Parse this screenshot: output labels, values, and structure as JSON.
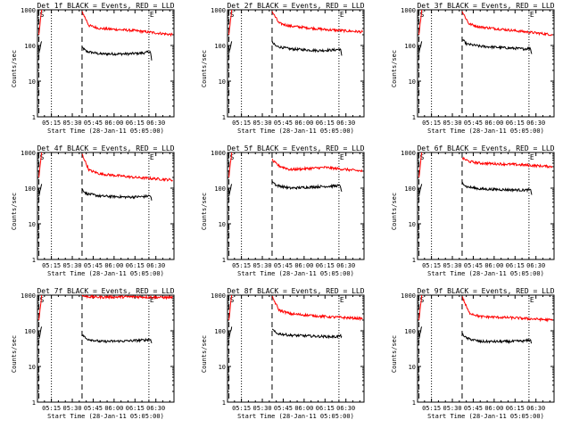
{
  "start_time_label": "Start Time (28-Jan-11 05:05:00)",
  "x_ticks": [
    "05:15",
    "05:30",
    "05:45",
    "06:00",
    "06:15",
    "06:30"
  ],
  "y_ticks": [
    "1",
    "10",
    "100",
    "1000"
  ],
  "colors": {
    "events": "#000000",
    "lld": "#ff0000",
    "frame": "#000000"
  },
  "chart_data": [
    {
      "type": "line",
      "title": "Det 1f BLACK = Events, RED = LLD",
      "xlabel": "Start Time (28-Jan-11 05:05:00)",
      "ylabel": "Counts/sec",
      "xlim": [
        "05:05",
        "06:43"
      ],
      "ylim": [
        1,
        1000
      ],
      "y_scale": "log",
      "x_tick_labels": [
        "05:15",
        "05:30",
        "05:45",
        "06:00",
        "06:15",
        "06:30"
      ],
      "markers": {
        "dotted": [
          "05:15",
          "06:25"
        ],
        "dashed": [
          "05:06",
          "05:37"
        ],
        "labels": {
          "start": "S",
          "end": "E"
        }
      },
      "series": [
        {
          "name": "Events",
          "color": "#000000",
          "segments": [
            {
              "x": [
                "05:06",
                "05:08"
              ],
              "y": [
                60,
                130
              ]
            },
            {
              "x": [
                "05:37",
                "05:40",
                "05:50",
                "06:10",
                "06:22",
                "06:26",
                "06:27"
              ],
              "y": [
                90,
                68,
                58,
                58,
                62,
                68,
                38
              ]
            }
          ]
        },
        {
          "name": "LLD",
          "color": "#ff0000",
          "segments": [
            {
              "x": [
                "05:06",
                "05:08"
              ],
              "y": [
                200,
                1000
              ]
            },
            {
              "x": [
                "05:37",
                "05:42",
                "05:50",
                "06:15",
                "06:42"
              ],
              "y": [
                900,
                360,
                300,
                260,
                200
              ]
            }
          ]
        }
      ]
    },
    {
      "type": "line",
      "title": "Det 2f BLACK = Events, RED = LLD",
      "xlabel": "Start Time (28-Jan-11 05:05:00)",
      "ylabel": "Counts/sec",
      "xlim": [
        "05:05",
        "06:43"
      ],
      "ylim": [
        1,
        1000
      ],
      "y_scale": "log",
      "x_tick_labels": [
        "05:15",
        "05:30",
        "05:45",
        "06:00",
        "06:15",
        "06:30"
      ],
      "markers": {
        "dotted": [
          "05:15",
          "06:25"
        ],
        "dashed": [
          "05:06",
          "05:37"
        ],
        "labels": {
          "start": "S",
          "end": "E"
        }
      },
      "series": [
        {
          "name": "Events",
          "color": "#000000",
          "segments": [
            {
              "x": [
                "05:06",
                "05:08"
              ],
              "y": [
                60,
                130
              ]
            },
            {
              "x": [
                "05:37",
                "05:40",
                "05:50",
                "06:10",
                "06:22",
                "06:26",
                "06:27"
              ],
              "y": [
                120,
                95,
                80,
                72,
                75,
                80,
                52
              ]
            }
          ]
        },
        {
          "name": "LLD",
          "color": "#ff0000",
          "segments": [
            {
              "x": [
                "05:06",
                "05:08"
              ],
              "y": [
                200,
                1000
              ]
            },
            {
              "x": [
                "05:37",
                "05:42",
                "05:50",
                "06:15",
                "06:42"
              ],
              "y": [
                900,
                420,
                350,
                280,
                240
              ]
            }
          ]
        }
      ]
    },
    {
      "type": "line",
      "title": "Det 3f BLACK = Events, RED = LLD",
      "xlabel": "Start Time (28-Jan-11 05:05:00)",
      "ylabel": "Counts/sec",
      "xlim": [
        "05:05",
        "06:43"
      ],
      "ylim": [
        1,
        1000
      ],
      "y_scale": "log",
      "x_tick_labels": [
        "05:15",
        "05:30",
        "05:45",
        "06:00",
        "06:15",
        "06:30"
      ],
      "markers": {
        "dotted": [
          "05:15",
          "06:25"
        ],
        "dashed": [
          "05:06",
          "05:37"
        ],
        "labels": {
          "start": "S",
          "end": "E"
        }
      },
      "series": [
        {
          "name": "Events",
          "color": "#000000",
          "segments": [
            {
              "x": [
                "05:06",
                "05:08"
              ],
              "y": [
                60,
                130
              ]
            },
            {
              "x": [
                "05:37",
                "05:40",
                "05:50",
                "06:10",
                "06:22",
                "06:26",
                "06:27"
              ],
              "y": [
                150,
                110,
                95,
                85,
                80,
                85,
                58
              ]
            }
          ]
        },
        {
          "name": "LLD",
          "color": "#ff0000",
          "segments": [
            {
              "x": [
                "05:06",
                "05:08"
              ],
              "y": [
                200,
                1000
              ]
            },
            {
              "x": [
                "05:37",
                "05:42",
                "05:50",
                "06:15",
                "06:42"
              ],
              "y": [
                900,
                400,
                330,
                260,
                200
              ]
            }
          ]
        }
      ]
    },
    {
      "type": "line",
      "title": "Det 4f BLACK = Events, RED = LLD",
      "xlabel": "Start Time (28-Jan-11 05:05:00)",
      "ylabel": "Counts/sec",
      "xlim": [
        "05:05",
        "06:43"
      ],
      "ylim": [
        1,
        1000
      ],
      "y_scale": "log",
      "x_tick_labels": [
        "05:15",
        "05:30",
        "05:45",
        "06:00",
        "06:15",
        "06:30"
      ],
      "markers": {
        "dotted": [
          "05:15",
          "06:25"
        ],
        "dashed": [
          "05:06",
          "05:37"
        ],
        "labels": {
          "start": "S",
          "end": "E"
        }
      },
      "series": [
        {
          "name": "Events",
          "color": "#000000",
          "segments": [
            {
              "x": [
                "05:06",
                "05:08"
              ],
              "y": [
                60,
                130
              ]
            },
            {
              "x": [
                "05:37",
                "05:40",
                "05:50",
                "06:10",
                "06:22",
                "06:26",
                "06:27"
              ],
              "y": [
                95,
                70,
                60,
                56,
                58,
                62,
                45
              ]
            }
          ]
        },
        {
          "name": "LLD",
          "color": "#ff0000",
          "segments": [
            {
              "x": [
                "05:06",
                "05:08"
              ],
              "y": [
                200,
                1000
              ]
            },
            {
              "x": [
                "05:37",
                "05:42",
                "05:50",
                "06:15",
                "06:42"
              ],
              "y": [
                900,
                320,
                250,
                200,
                170
              ]
            }
          ]
        }
      ]
    },
    {
      "type": "line",
      "title": "Det 5f BLACK = Events, RED = LLD",
      "xlabel": "Start Time (28-Jan-11 05:05:00)",
      "ylabel": "Counts/sec",
      "xlim": [
        "05:05",
        "06:43"
      ],
      "ylim": [
        1,
        1000
      ],
      "y_scale": "log",
      "x_tick_labels": [
        "05:15",
        "05:30",
        "05:45",
        "06:00",
        "06:15",
        "06:30"
      ],
      "markers": {
        "dotted": [
          "05:15",
          "06:25"
        ],
        "dashed": [
          "05:06",
          "05:37"
        ],
        "labels": {
          "start": "S",
          "end": "E"
        }
      },
      "series": [
        {
          "name": "Events",
          "color": "#000000",
          "segments": [
            {
              "x": [
                "05:06",
                "05:08"
              ],
              "y": [
                60,
                130
              ]
            },
            {
              "x": [
                "05:37",
                "05:40",
                "05:50",
                "06:10",
                "06:22",
                "06:26",
                "06:27"
              ],
              "y": [
                160,
                120,
                100,
                110,
                115,
                118,
                80
              ]
            }
          ]
        },
        {
          "name": "LLD",
          "color": "#ff0000",
          "segments": [
            {
              "x": [
                "05:06",
                "05:08"
              ],
              "y": [
                200,
                1000
              ]
            },
            {
              "x": [
                "05:37",
                "05:42",
                "05:50",
                "06:15",
                "06:42"
              ],
              "y": [
                600,
                420,
                330,
                380,
                300
              ]
            }
          ]
        }
      ]
    },
    {
      "type": "line",
      "title": "Det 6f BLACK = Events, RED = LLD",
      "xlabel": "Start Time (28-Jan-11 05:05:00)",
      "ylabel": "Counts/sec",
      "xlim": [
        "05:05",
        "06:43"
      ],
      "ylim": [
        1,
        1000
      ],
      "y_scale": "log",
      "x_tick_labels": [
        "05:15",
        "05:30",
        "05:45",
        "06:00",
        "06:15",
        "06:30"
      ],
      "markers": {
        "dotted": [
          "05:15",
          "06:25"
        ],
        "dashed": [
          "05:06",
          "05:37"
        ],
        "labels": {
          "start": "S",
          "end": "E"
        }
      },
      "series": [
        {
          "name": "Events",
          "color": "#000000",
          "segments": [
            {
              "x": [
                "05:06",
                "05:08"
              ],
              "y": [
                60,
                130
              ]
            },
            {
              "x": [
                "05:37",
                "05:40",
                "05:50",
                "06:10",
                "06:22",
                "06:26",
                "06:27"
              ],
              "y": [
                150,
                110,
                95,
                90,
                88,
                90,
                65
              ]
            }
          ]
        },
        {
          "name": "LLD",
          "color": "#ff0000",
          "segments": [
            {
              "x": [
                "05:06",
                "05:08"
              ],
              "y": [
                200,
                1000
              ]
            },
            {
              "x": [
                "05:37",
                "05:42",
                "05:50",
                "06:15",
                "06:42"
              ],
              "y": [
                700,
                560,
                500,
                460,
                400
              ]
            }
          ]
        }
      ]
    },
    {
      "type": "line",
      "title": "Det 7f BLACK = Events, RED = LLD",
      "xlabel": "Start Time (28-Jan-11 05:05:00)",
      "ylabel": "Counts/sec",
      "xlim": [
        "05:05",
        "06:43"
      ],
      "ylim": [
        1,
        1000
      ],
      "y_scale": "log",
      "x_tick_labels": [
        "05:15",
        "05:30",
        "05:45",
        "06:00",
        "06:15",
        "06:30"
      ],
      "markers": {
        "dotted": [
          "05:15",
          "06:25"
        ],
        "dashed": [
          "05:06",
          "05:37"
        ],
        "labels": {
          "start": "S",
          "end": "E"
        }
      },
      "series": [
        {
          "name": "Events",
          "color": "#000000",
          "segments": [
            {
              "x": [
                "05:06",
                "05:08"
              ],
              "y": [
                60,
                130
              ]
            },
            {
              "x": [
                "05:37",
                "05:40",
                "05:50",
                "06:10",
                "06:22",
                "06:26",
                "06:27"
              ],
              "y": [
                80,
                60,
                50,
                52,
                55,
                58,
                45
              ]
            }
          ]
        },
        {
          "name": "LLD",
          "color": "#ff0000",
          "segments": [
            {
              "x": [
                "05:06",
                "05:08"
              ],
              "y": [
                200,
                1000
              ]
            },
            {
              "x": [
                "05:37",
                "05:42",
                "05:50",
                "06:15",
                "06:42"
              ],
              "y": [
                950,
                900,
                880,
                900,
                850
              ]
            }
          ]
        }
      ]
    },
    {
      "type": "line",
      "title": "Det 8f BLACK = Events, RED = LLD",
      "xlabel": "Start Time (28-Jan-11 05:05:00)",
      "ylabel": "Counts/sec",
      "xlim": [
        "05:05",
        "06:43"
      ],
      "ylim": [
        1,
        1000
      ],
      "y_scale": "log",
      "x_tick_labels": [
        "05:15",
        "05:30",
        "05:45",
        "06:00",
        "06:15",
        "06:30"
      ],
      "markers": {
        "dotted": [
          "05:15",
          "06:25"
        ],
        "dashed": [
          "05:06",
          "05:37"
        ],
        "labels": {
          "start": "S",
          "end": "E"
        }
      },
      "series": [
        {
          "name": "Events",
          "color": "#000000",
          "segments": [
            {
              "x": [
                "05:06",
                "05:08"
              ],
              "y": [
                60,
                130
              ]
            },
            {
              "x": [
                "05:37",
                "05:40",
                "05:50",
                "06:10",
                "06:22",
                "06:26",
                "06:27"
              ],
              "y": [
                110,
                85,
                75,
                70,
                68,
                72,
                70
              ]
            }
          ]
        },
        {
          "name": "LLD",
          "color": "#ff0000",
          "segments": [
            {
              "x": [
                "05:06",
                "05:08"
              ],
              "y": [
                200,
                1000
              ]
            },
            {
              "x": [
                "05:37",
                "05:42",
                "05:50",
                "06:15",
                "06:42"
              ],
              "y": [
                900,
                380,
                300,
                250,
                220
              ]
            }
          ]
        }
      ]
    },
    {
      "type": "line",
      "title": "Det 9f BLACK = Events, RED = LLD",
      "xlabel": "Start Time (28-Jan-11 05:05:00)",
      "ylabel": "Counts/sec",
      "xlim": [
        "05:05",
        "06:43"
      ],
      "ylim": [
        1,
        1000
      ],
      "y_scale": "log",
      "x_tick_labels": [
        "05:15",
        "05:30",
        "05:45",
        "06:00",
        "06:15",
        "06:30"
      ],
      "markers": {
        "dotted": [
          "05:15",
          "06:25"
        ],
        "dashed": [
          "05:06",
          "05:37"
        ],
        "labels": {
          "start": "S",
          "end": "E"
        }
      },
      "series": [
        {
          "name": "Events",
          "color": "#000000",
          "segments": [
            {
              "x": [
                "05:06",
                "05:08"
              ],
              "y": [
                60,
                130
              ]
            },
            {
              "x": [
                "05:37",
                "05:40",
                "05:50",
                "06:10",
                "06:22",
                "06:26",
                "06:27"
              ],
              "y": [
                85,
                62,
                50,
                50,
                52,
                55,
                45
              ]
            }
          ]
        },
        {
          "name": "LLD",
          "color": "#ff0000",
          "segments": [
            {
              "x": [
                "05:06",
                "05:08"
              ],
              "y": [
                200,
                1000
              ]
            },
            {
              "x": [
                "05:37",
                "05:42",
                "05:50",
                "06:15",
                "06:42"
              ],
              "y": [
                900,
                320,
                250,
                230,
                200
              ]
            }
          ]
        }
      ]
    }
  ]
}
